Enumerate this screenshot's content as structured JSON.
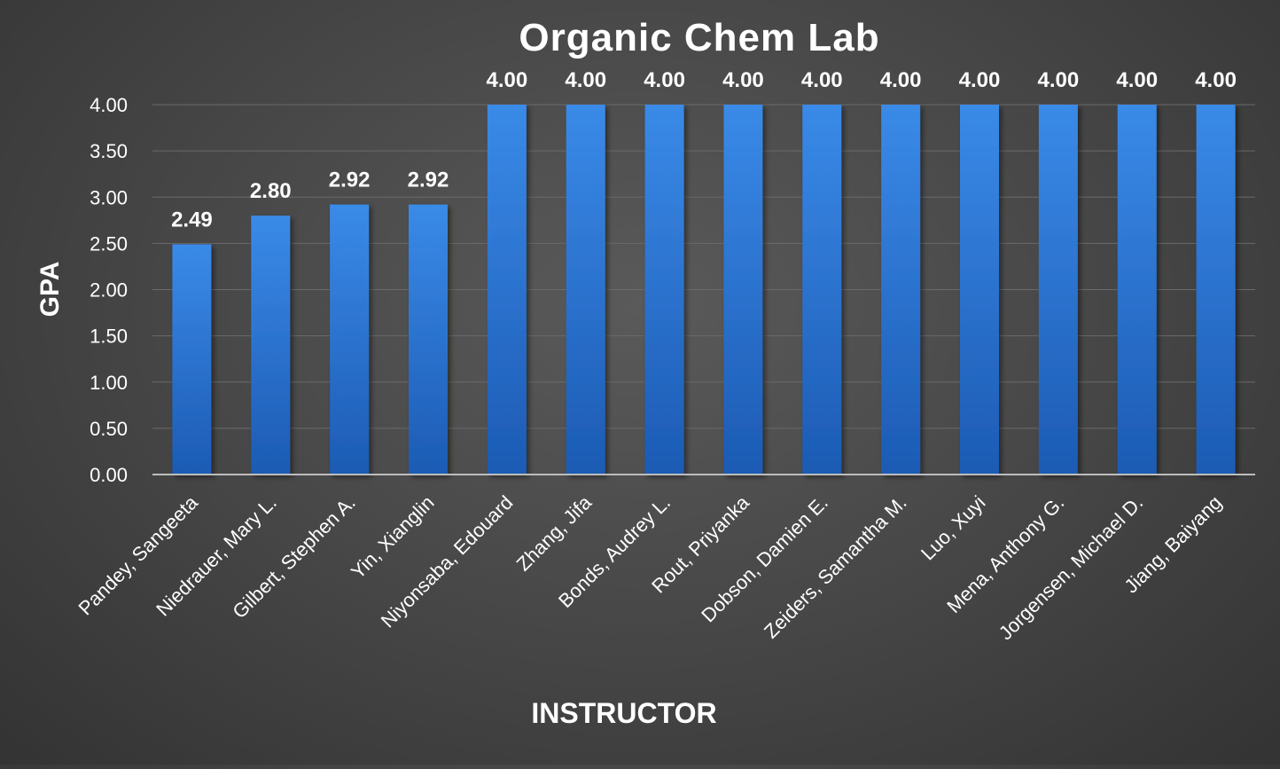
{
  "chart_data": {
    "type": "bar",
    "title": "Organic Chem Lab",
    "xlabel": "INSTRUCTOR",
    "ylabel": "GPA",
    "ylim": [
      0,
      4
    ],
    "yticks": [
      "0.00",
      "0.50",
      "1.00",
      "1.50",
      "2.00",
      "2.50",
      "3.00",
      "3.50",
      "4.00"
    ],
    "grid": true,
    "categories": [
      "Pandey, Sangeeta",
      "Niedrauer, Mary L.",
      "Gilbert, Stephen A.",
      "Yin, Xianglin",
      "Niyonsaba, Edouard",
      "Zhang, Jifa",
      "Bonds, Audrey L.",
      "Rout, Priyanka",
      "Dobson, Damien E.",
      "Zeiders, Samantha M.",
      "Luo, Xuyi",
      "Mena, Anthony G.",
      "Jorgensen, Michael D.",
      "Jiang, Baiyang"
    ],
    "values": [
      2.49,
      2.8,
      2.92,
      2.92,
      4.0,
      4.0,
      4.0,
      4.0,
      4.0,
      4.0,
      4.0,
      4.0,
      4.0,
      4.0
    ],
    "data_labels": [
      "2.49",
      "2.80",
      "2.92",
      "2.92",
      "4.00",
      "4.00",
      "4.00",
      "4.00",
      "4.00",
      "4.00",
      "4.00",
      "4.00",
      "4.00",
      "4.00"
    ],
    "colors": {
      "bar_top": "#3a8ae8",
      "bar_bottom": "#1c5bb4",
      "grid": "#6a6a6a",
      "axis": "#bdbdbd",
      "text": "#ffffff"
    }
  }
}
